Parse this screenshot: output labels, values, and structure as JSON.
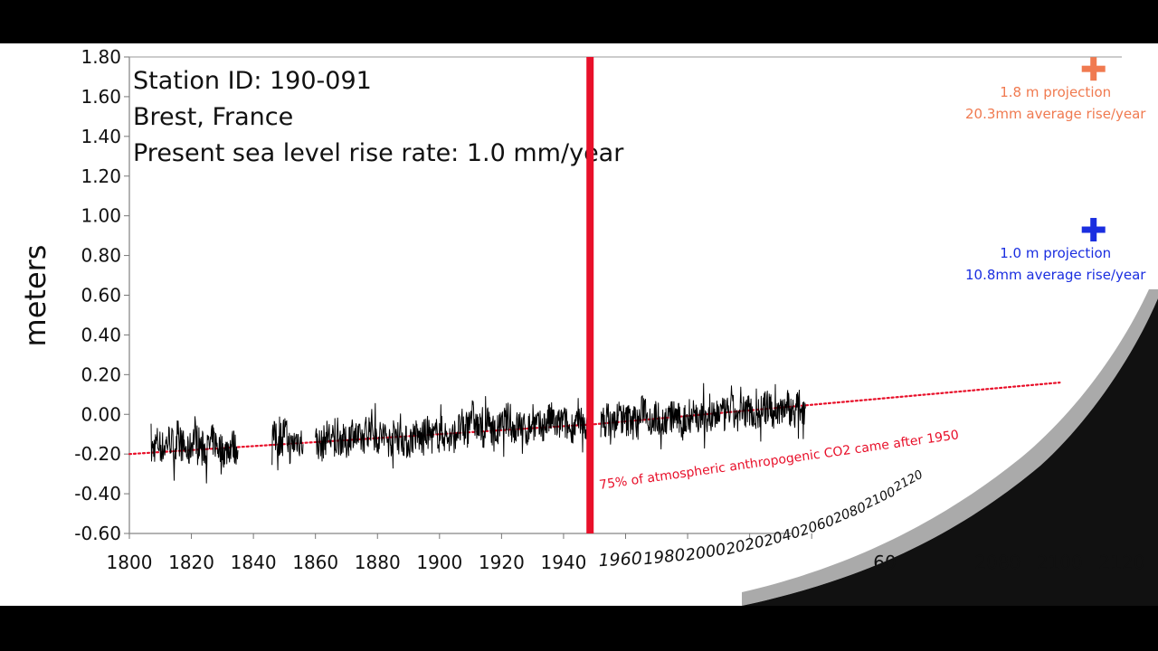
{
  "chart_data": {
    "type": "line",
    "ylabel": "meters",
    "xlim": [
      1800,
      2120
    ],
    "ylim": [
      -0.6,
      1.8
    ],
    "x_ticks": [
      1800,
      1820,
      1840,
      1860,
      1880,
      1900,
      1920,
      1940,
      1960,
      1980,
      2000,
      2020,
      2040,
      2060,
      2080,
      2100,
      2120
    ],
    "y_ticks": [
      "-0.60",
      "-0.40",
      "-0.20",
      "0.00",
      "0.20",
      "0.40",
      "0.60",
      "0.80",
      "1.00",
      "1.20",
      "1.40",
      "1.60",
      "1.80"
    ],
    "y_tick_values": [
      -0.6,
      -0.4,
      -0.2,
      0,
      0.2,
      0.4,
      0.6,
      0.8,
      1.0,
      1.2,
      1.4,
      1.6,
      1.8
    ],
    "info_lines": [
      "Station ID: 190-091",
      "Brest, France",
      "Present sea level rise rate: 1.0 mm/year"
    ],
    "series": [
      {
        "type": "line",
        "color": "#000000",
        "segments": [
          {
            "x": [
              1807,
              1809,
              1811,
              1813,
              1815,
              1817,
              1819,
              1821,
              1823,
              1825,
              1827,
              1829,
              1831,
              1833,
              1835
            ],
            "y": [
              -0.19,
              -0.14,
              -0.17,
              -0.12,
              -0.18,
              -0.15,
              -0.2,
              -0.1,
              -0.16,
              -0.18,
              -0.13,
              -0.17,
              -0.19,
              -0.15,
              -0.18
            ]
          },
          {
            "x": [
              1846,
              1848,
              1850,
              1852,
              1854,
              1856
            ],
            "y": [
              -0.1,
              -0.14,
              -0.08,
              -0.17,
              -0.12,
              -0.15
            ]
          },
          {
            "x": [
              1860,
              1862,
              1864,
              1866,
              1868,
              1870,
              1872,
              1874,
              1876,
              1878,
              1880,
              1882,
              1884,
              1886,
              1888,
              1890,
              1892,
              1894,
              1896,
              1898,
              1900,
              1902,
              1904,
              1906,
              1908,
              1910,
              1912,
              1914,
              1916,
              1918,
              1920,
              1922,
              1924,
              1926,
              1928,
              1930,
              1932,
              1934,
              1936,
              1938,
              1940,
              1942,
              1944,
              1946,
              1948
            ],
            "y": [
              -0.13,
              -0.16,
              -0.1,
              -0.14,
              -0.12,
              -0.15,
              -0.08,
              -0.13,
              -0.11,
              -0.05,
              -0.12,
              -0.1,
              -0.14,
              -0.09,
              -0.12,
              -0.15,
              -0.1,
              -0.13,
              -0.09,
              -0.12,
              -0.08,
              -0.11,
              -0.13,
              -0.07,
              -0.1,
              0.02,
              -0.06,
              -0.09,
              -0.04,
              -0.1,
              -0.06,
              -0.02,
              -0.08,
              -0.05,
              -0.09,
              -0.04,
              -0.07,
              -0.05,
              -0.02,
              -0.06,
              -0.03,
              -0.08,
              -0.04,
              -0.07,
              -0.05
            ]
          },
          {
            "x": [
              1952,
              1954,
              1956,
              1958,
              1960,
              1962,
              1964,
              1966,
              1968,
              1970,
              1972,
              1974,
              1976,
              1978,
              1980,
              1982,
              1984,
              1986,
              1988,
              1990,
              1992,
              1994,
              1996,
              1998,
              2000,
              2002,
              2004,
              2006,
              2008,
              2010,
              2012,
              2014,
              2016,
              2018
            ],
            "y": [
              -0.06,
              -0.02,
              -0.05,
              0.0,
              -0.04,
              -0.01,
              -0.05,
              0.05,
              -0.03,
              -0.01,
              -0.04,
              -0.02,
              0.0,
              -0.05,
              -0.02,
              0.01,
              -0.03,
              0.0,
              -0.04,
              0.02,
              -0.01,
              0.03,
              -0.02,
              0.01,
              0.03,
              -0.01,
              0.02,
              0.04,
              0.0,
              0.03,
              0.05,
              0.01,
              0.04,
              0.03
            ]
          }
        ]
      },
      {
        "type": "dotted-line",
        "color": "#e8102a",
        "x": [
          1800,
          1950,
          2100
        ],
        "y": [
          -0.2,
          -0.05,
          0.16
        ]
      }
    ],
    "vline": {
      "x": 1950,
      "color": "#e8102a"
    },
    "annotation": "75% of atmospheric anthropogenic CO2 came after 1950",
    "projections": [
      {
        "x": 2110,
        "y": 1.74,
        "line1": "1.8 m projection",
        "line2": "20.3mm average rise/year",
        "color": "#f07a50"
      },
      {
        "x": 2110,
        "y": 0.93,
        "line1": "1.0 m projection",
        "line2": "10.8mm average rise/year",
        "color": "#1a2ee0"
      }
    ],
    "ghost_tick_labels": [
      "2040",
      "2060",
      "2080",
      "2100",
      "2120"
    ]
  }
}
